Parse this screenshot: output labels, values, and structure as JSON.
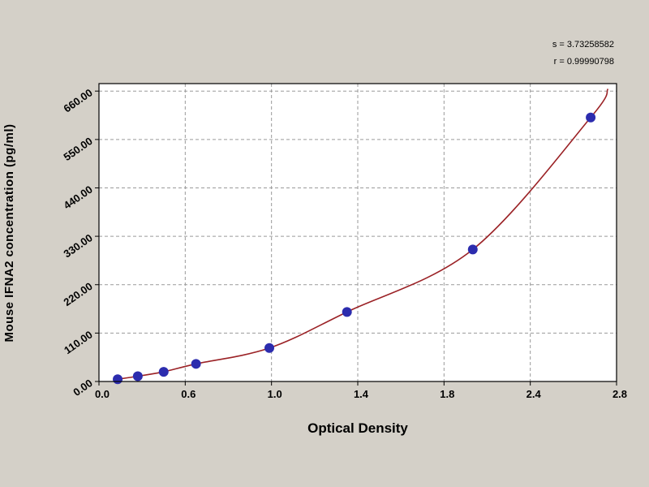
{
  "page": {
    "background": "#d4d0c8"
  },
  "stats": {
    "s_label": "s = 3.73258582",
    "r_label": "r = 0.99990798"
  },
  "chart_data": {
    "type": "scatter",
    "title": "",
    "xlabel": "Optical Density",
    "ylabel": "Mouse IFNA2  concentration (pg/ml)",
    "x_tick_values": [
      0.0,
      0.6,
      1.0,
      1.4,
      1.8,
      2.4,
      2.8
    ],
    "x_tick_labels": [
      "0.0",
      "0.6",
      "1.0",
      "1.4",
      "1.8",
      "2.4",
      "2.8"
    ],
    "y_tick_values": [
      0,
      110,
      220,
      330,
      440,
      550,
      660
    ],
    "y_tick_labels": [
      "0.00",
      "110.00",
      "220.00",
      "330.00",
      "440.00",
      "550.00",
      "660.00"
    ],
    "xlim": [
      0,
      2.8
    ],
    "ylim": [
      0,
      677
    ],
    "grid": "dashed",
    "legend": "none",
    "series": [
      {
        "name": "standard-curve-points",
        "points": [
          {
            "x": 0.13,
            "y": 5
          },
          {
            "x": 0.27,
            "y": 12
          },
          {
            "x": 0.45,
            "y": 22
          },
          {
            "x": 0.65,
            "y": 40
          },
          {
            "x": 0.99,
            "y": 76
          },
          {
            "x": 1.35,
            "y": 158
          },
          {
            "x": 2.0,
            "y": 300
          },
          {
            "x": 2.68,
            "y": 600
          }
        ]
      }
    ],
    "fit_curve_end": {
      "x": 2.76,
      "y": 665
    },
    "colors": {
      "curve": "#9b2226",
      "point": "#2c2cae",
      "grid": "#9a9a9a",
      "plot_bg": "#ffffff",
      "axis": "#000000",
      "page_bg": "#d4d0c8"
    }
  }
}
